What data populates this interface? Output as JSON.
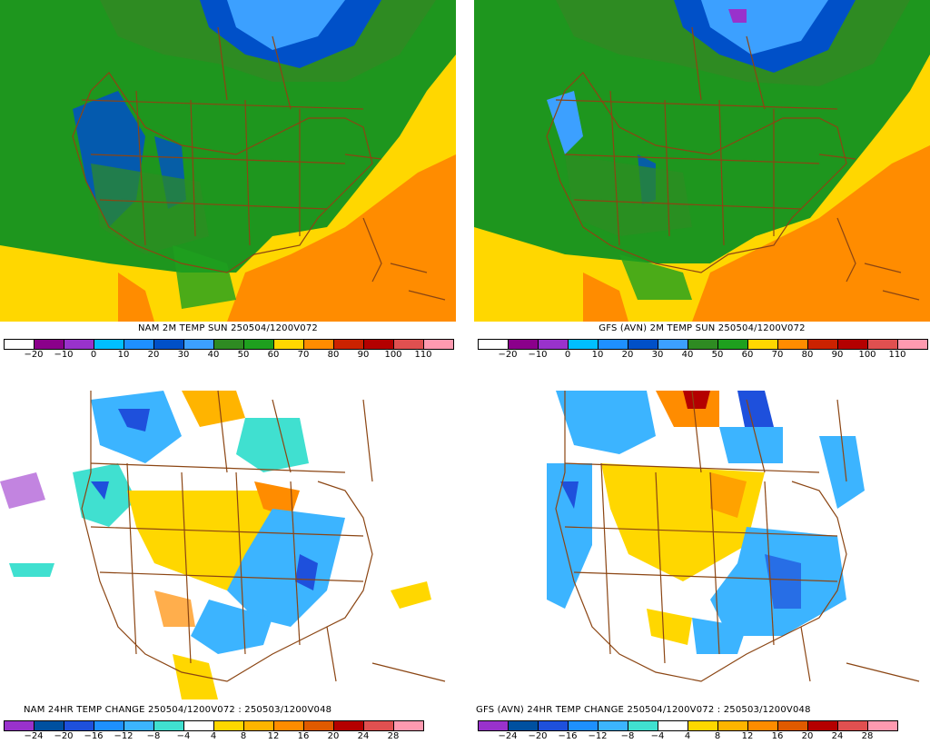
{
  "panels": [
    {
      "id": "nam-temp",
      "title": "NAM 2M TEMP  SUN 250504/1200V072",
      "colorbar": {
        "labels": [
          "−20",
          "−10",
          "0",
          "10",
          "20",
          "30",
          "40",
          "50",
          "60",
          "70",
          "80",
          "90",
          "100",
          "110"
        ],
        "colors": [
          "#ffffff",
          "#8b008b",
          "#9932cc",
          "#00bfff",
          "#1e90ff",
          "#0050c8",
          "#3ca0ff",
          "#2e8b22",
          "#1ea01e",
          "#ffd700",
          "#ff8c00",
          "#cc2200",
          "#b40000",
          "#e05050",
          "#ff9ab0"
        ]
      }
    },
    {
      "id": "gfs-temp",
      "title": "GFS (AVN) 2M TEMP  SUN 250504/1200V072",
      "colorbar": {
        "labels": [
          "−20",
          "−10",
          "0",
          "10",
          "20",
          "30",
          "40",
          "50",
          "60",
          "70",
          "80",
          "90",
          "100",
          "110"
        ],
        "colors": [
          "#ffffff",
          "#8b008b",
          "#9932cc",
          "#00bfff",
          "#1e90ff",
          "#0050c8",
          "#3ca0ff",
          "#2e8b22",
          "#1ea01e",
          "#ffd700",
          "#ff8c00",
          "#cc2200",
          "#b40000",
          "#e05050",
          "#ff9ab0"
        ]
      }
    },
    {
      "id": "nam-change",
      "title": "NAM 24HR TEMP CHANGE 250504/1200V072 : 250503/1200V048",
      "colorbar": {
        "labels": [
          "−24",
          "−20",
          "−16",
          "−12",
          "−8",
          "−4",
          "4",
          "8",
          "12",
          "16",
          "20",
          "24",
          "28"
        ],
        "colors": [
          "#9932cc",
          "#0050a0",
          "#1e50dc",
          "#1e90ff",
          "#3cb4ff",
          "#40e0d0",
          "#ffffff",
          "#ffd700",
          "#ffb400",
          "#ff8c00",
          "#e05a00",
          "#b40000",
          "#e05050",
          "#ff9ab0"
        ]
      }
    },
    {
      "id": "gfs-change",
      "title": "GFS (AVN) 24HR TEMP CHANGE 250504/1200V072 : 250503/1200V048",
      "colorbar": {
        "labels": [
          "−24",
          "−20",
          "−16",
          "−12",
          "−8",
          "−4",
          "4",
          "8",
          "12",
          "16",
          "20",
          "24",
          "28"
        ],
        "colors": [
          "#9932cc",
          "#0050a0",
          "#1e50dc",
          "#1e90ff",
          "#3cb4ff",
          "#40e0d0",
          "#ffffff",
          "#ffd700",
          "#ffb400",
          "#ff8c00",
          "#e05a00",
          "#b40000",
          "#e05050",
          "#ff9ab0"
        ]
      }
    }
  ]
}
